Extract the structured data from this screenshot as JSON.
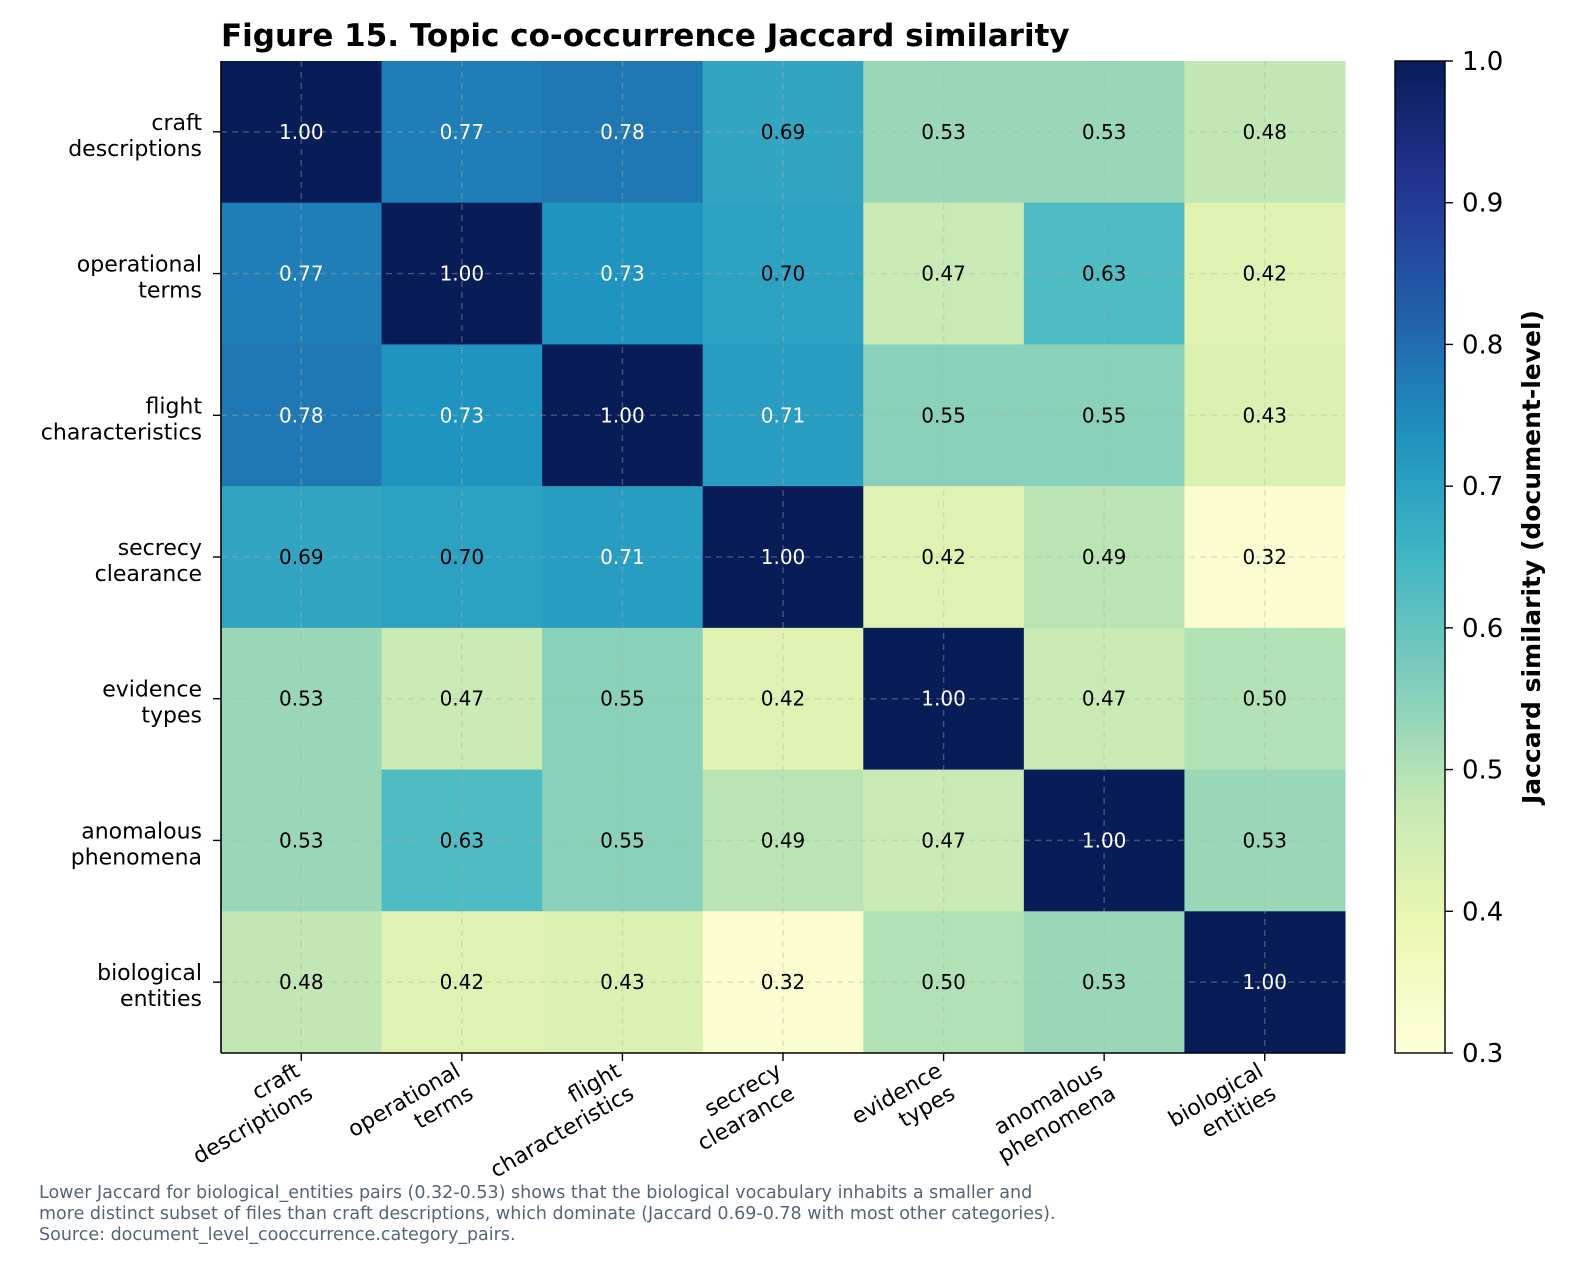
{
  "chart_data": {
    "type": "heatmap",
    "title": "Figure 15. Topic co-occurrence Jaccard similarity",
    "row_labels": [
      [
        "craft",
        "descriptions"
      ],
      [
        "operational",
        "terms"
      ],
      [
        "flight",
        "characteristics"
      ],
      [
        "secrecy",
        "clearance"
      ],
      [
        "evidence",
        "types"
      ],
      [
        "anomalous",
        "phenomena"
      ],
      [
        "biological",
        "entities"
      ]
    ],
    "col_labels": [
      [
        "craft",
        "descriptions"
      ],
      [
        "operational",
        "terms"
      ],
      [
        "flight",
        "characteristics"
      ],
      [
        "secrecy",
        "clearance"
      ],
      [
        "evidence",
        "types"
      ],
      [
        "anomalous",
        "phenomena"
      ],
      [
        "biological",
        "entities"
      ]
    ],
    "values": [
      [
        1.0,
        0.77,
        0.78,
        0.69,
        0.53,
        0.53,
        0.48
      ],
      [
        0.77,
        1.0,
        0.73,
        0.7,
        0.47,
        0.63,
        0.42
      ],
      [
        0.78,
        0.73,
        1.0,
        0.71,
        0.55,
        0.55,
        0.43
      ],
      [
        0.69,
        0.7,
        0.71,
        1.0,
        0.42,
        0.49,
        0.32
      ],
      [
        0.53,
        0.47,
        0.55,
        0.42,
        1.0,
        0.47,
        0.5
      ],
      [
        0.53,
        0.63,
        0.55,
        0.49,
        0.47,
        1.0,
        0.53
      ],
      [
        0.48,
        0.42,
        0.43,
        0.32,
        0.5,
        0.53,
        1.0
      ]
    ],
    "colorbar": {
      "label": "Jaccard similarity (document-level)",
      "min": 0.3,
      "max": 1.0,
      "ticks": [
        "0.3",
        "0.4",
        "0.5",
        "0.6",
        "0.7",
        "0.8",
        "0.9",
        "1.0"
      ]
    },
    "colormap": "YlGnBu",
    "grid": true
  },
  "caption": {
    "lines": [
      "Lower Jaccard for biological_entities pairs (0.32-0.53) shows that the biological vocabulary inhabits a smaller and",
      "more distinct subset of files than craft descriptions, which dominate (Jaccard 0.69-0.78 with most other categories).",
      "Source: document_level_cooccurrence.category_pairs."
    ]
  },
  "colors": {
    "caption_text": "#55647a",
    "cell_text_dark": "#000000",
    "cell_text_light": "#ffffff"
  }
}
